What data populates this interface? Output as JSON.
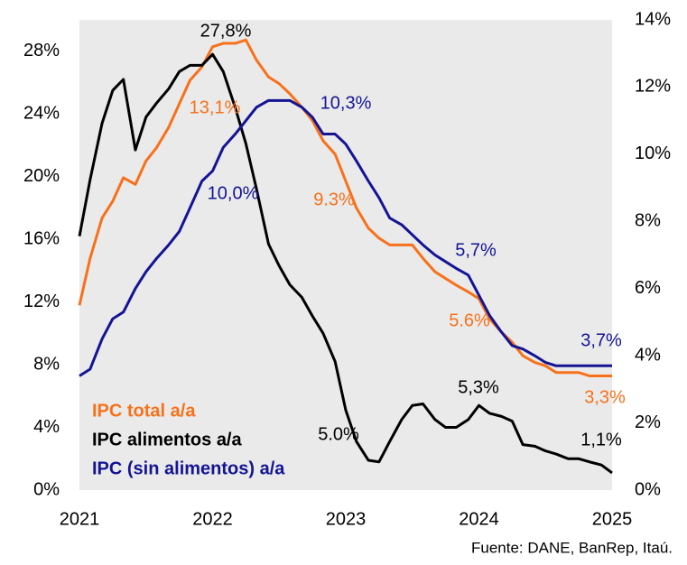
{
  "chart_data": {
    "type": "line",
    "x": [
      2021,
      2021.08,
      2021.17,
      2021.25,
      2021.33,
      2021.42,
      2021.5,
      2021.58,
      2021.67,
      2021.75,
      2021.83,
      2021.92,
      2022,
      2022.08,
      2022.17,
      2022.25,
      2022.33,
      2022.42,
      2022.5,
      2022.58,
      2022.67,
      2022.75,
      2022.83,
      2022.92,
      2023,
      2023.08,
      2023.17,
      2023.25,
      2023.33,
      2023.42,
      2023.5,
      2023.58,
      2023.67,
      2023.75,
      2023.83,
      2023.92,
      2024,
      2024.08,
      2024.17,
      2024.25,
      2024.33,
      2024.42,
      2024.5,
      2024.58,
      2024.67,
      2024.75,
      2024.83,
      2024.92,
      2025
    ],
    "xlim": [
      2021,
      2025
    ],
    "xticks": [
      2021,
      2022,
      2023,
      2024,
      2025
    ],
    "ylim": [
      0,
      30
    ],
    "yticks": [
      {
        "value": 0,
        "label": "0%"
      },
      {
        "value": 4,
        "label": "4%"
      },
      {
        "value": 8,
        "label": "8%"
      },
      {
        "value": 12,
        "label": "12%"
      },
      {
        "value": 16,
        "label": "16%"
      },
      {
        "value": 20,
        "label": "20%"
      },
      {
        "value": 24,
        "label": "24%"
      },
      {
        "value": 28,
        "label": "28%"
      }
    ],
    "y2lim": [
      0,
      14
    ],
    "y2ticks": [
      {
        "value": 0,
        "label": "0%"
      },
      {
        "value": 2,
        "label": "2%"
      },
      {
        "value": 4,
        "label": "4%"
      },
      {
        "value": 6,
        "label": "6%"
      },
      {
        "value": 8,
        "label": "8%"
      },
      {
        "value": 10,
        "label": "10%"
      },
      {
        "value": 12,
        "label": "12%"
      },
      {
        "value": 14,
        "label": "14%"
      }
    ],
    "series": [
      {
        "name": "IPC total a/a",
        "color": "#f7711a",
        "axis": "y2",
        "values": [
          5.5,
          6.9,
          8.1,
          8.6,
          9.3,
          9.1,
          9.8,
          10.2,
          10.8,
          11.5,
          12.2,
          12.6,
          13.2,
          13.3,
          13.3,
          13.4,
          12.8,
          12.3,
          12.1,
          11.8,
          11.4,
          11.0,
          10.4,
          10.0,
          9.2,
          8.4,
          7.8,
          7.5,
          7.3,
          7.3,
          7.3,
          6.9,
          6.5,
          6.3,
          6.1,
          5.9,
          5.7,
          5.1,
          4.7,
          4.4,
          4.0,
          3.8,
          3.7,
          3.5,
          3.5,
          3.5,
          3.4,
          3.4,
          3.4
        ]
      },
      {
        "name": "IPC alimentos a/a",
        "color": "#000000",
        "axis": "y",
        "values": [
          16.2,
          19.8,
          23.4,
          25.5,
          26.2,
          21.7,
          23.8,
          24.7,
          25.6,
          26.7,
          27.1,
          27.1,
          27.8,
          26.7,
          24.4,
          22.1,
          19.2,
          15.7,
          14.3,
          13.1,
          12.3,
          11.1,
          10.0,
          8.2,
          5.1,
          3.1,
          1.9,
          1.8,
          3.1,
          4.5,
          5.4,
          5.5,
          4.5,
          4.0,
          4.0,
          4.5,
          5.4,
          4.9,
          4.7,
          4.4,
          2.9,
          2.8,
          2.5,
          2.3,
          2.0,
          2.0,
          1.8,
          1.6,
          1.1
        ]
      },
      {
        "name": "IPC (sin alimentos) a/a",
        "color": "#141494",
        "axis": "y2",
        "values": [
          3.4,
          3.6,
          4.5,
          5.1,
          5.3,
          6.0,
          6.5,
          6.9,
          7.3,
          7.7,
          8.4,
          9.2,
          9.5,
          10.2,
          10.6,
          11.0,
          11.4,
          11.6,
          11.6,
          11.6,
          11.4,
          11.1,
          10.6,
          10.6,
          10.3,
          9.8,
          9.2,
          8.7,
          8.1,
          7.9,
          7.6,
          7.3,
          7.0,
          6.8,
          6.6,
          6.4,
          5.8,
          5.2,
          4.7,
          4.3,
          4.2,
          4.0,
          3.8,
          3.7,
          3.7,
          3.7,
          3.7,
          3.7,
          3.7
        ]
      }
    ],
    "annotations": [
      {
        "text": "27,8%",
        "color": "#000000"
      },
      {
        "text": "13,1%",
        "color": "#f7711a"
      },
      {
        "text": "10,3%",
        "color": "#141494"
      },
      {
        "text": "10,0%",
        "color": "#141494"
      },
      {
        "text": "9.3%",
        "color": "#f7711a"
      },
      {
        "text": "5,7%",
        "color": "#141494"
      },
      {
        "text": "5.6%",
        "color": "#f7711a"
      },
      {
        "text": "3,7%",
        "color": "#141494"
      },
      {
        "text": "5,3%",
        "color": "#000000"
      },
      {
        "text": "5.0%",
        "color": "#000000"
      },
      {
        "text": "1,1%",
        "color": "#000000"
      },
      {
        "text": "3,3%",
        "color": "#f7711a"
      }
    ],
    "source": "Fuente: DANE, BanRep, Itaú."
  }
}
